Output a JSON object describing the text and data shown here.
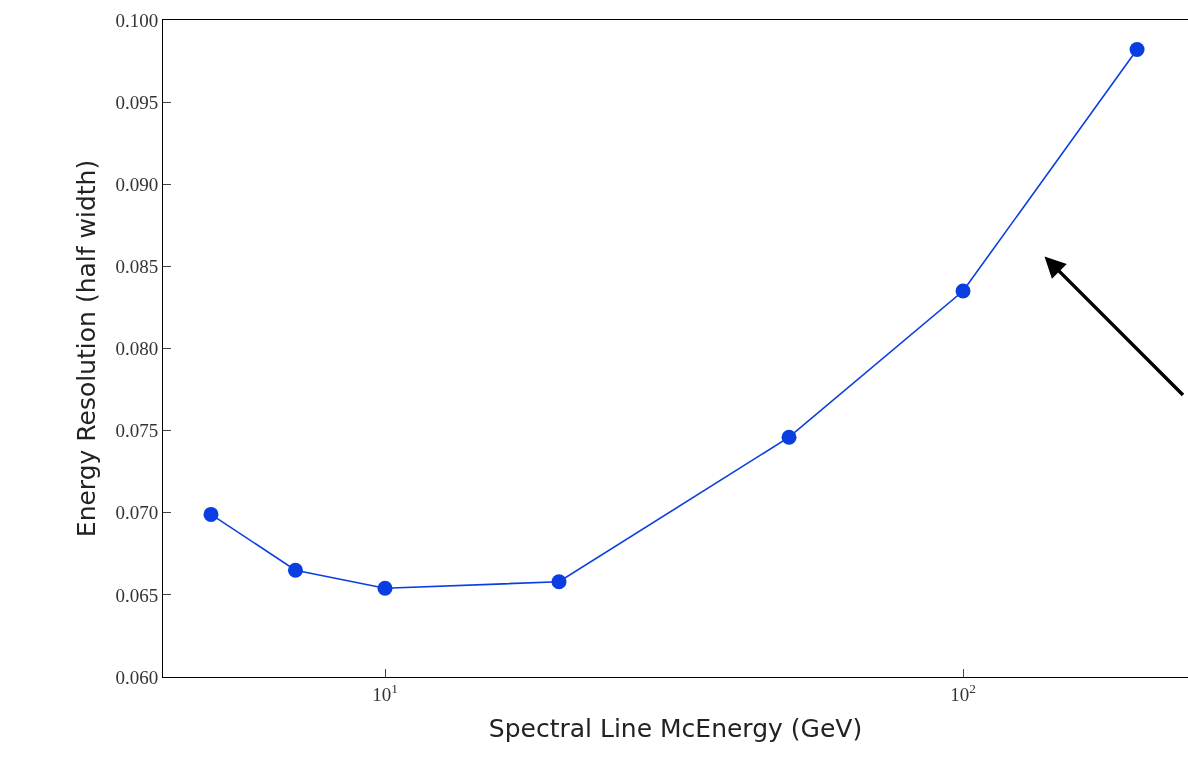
{
  "chart_data": {
    "type": "line",
    "xlabel": "Spectral Line McEnergy (GeV)",
    "ylabel": "Energy Resolution (half width)",
    "x": [
      5,
      7,
      10,
      20,
      50,
      100,
      200
    ],
    "series": [
      {
        "color": "#0a3ee0",
        "values": [
          0.0699,
          0.0665,
          0.0654,
          0.0658,
          0.0746,
          0.0835,
          0.0982
        ]
      }
    ],
    "log": "x",
    "xlim": [
      4.13,
      245
    ],
    "ylim": [
      0.06,
      0.1
    ],
    "xticks": [
      {
        "value": 10,
        "label": "10$^{1}$"
      },
      {
        "value": 100,
        "label": "10$^{2}$"
      }
    ],
    "yticks": [
      {
        "value": 0.06,
        "label": "0.060"
      },
      {
        "value": 0.065,
        "label": "0.065"
      },
      {
        "value": 0.07,
        "label": "0.070"
      },
      {
        "value": 0.075,
        "label": "0.075"
      },
      {
        "value": 0.08,
        "label": "0.080"
      },
      {
        "value": 0.085,
        "label": "0.085"
      },
      {
        "value": 0.09,
        "label": "0.090"
      },
      {
        "value": 0.095,
        "label": "0.095"
      },
      {
        "value": 0.1,
        "label": "0.100"
      }
    ],
    "marker": "circle",
    "line_style": "solid"
  }
}
